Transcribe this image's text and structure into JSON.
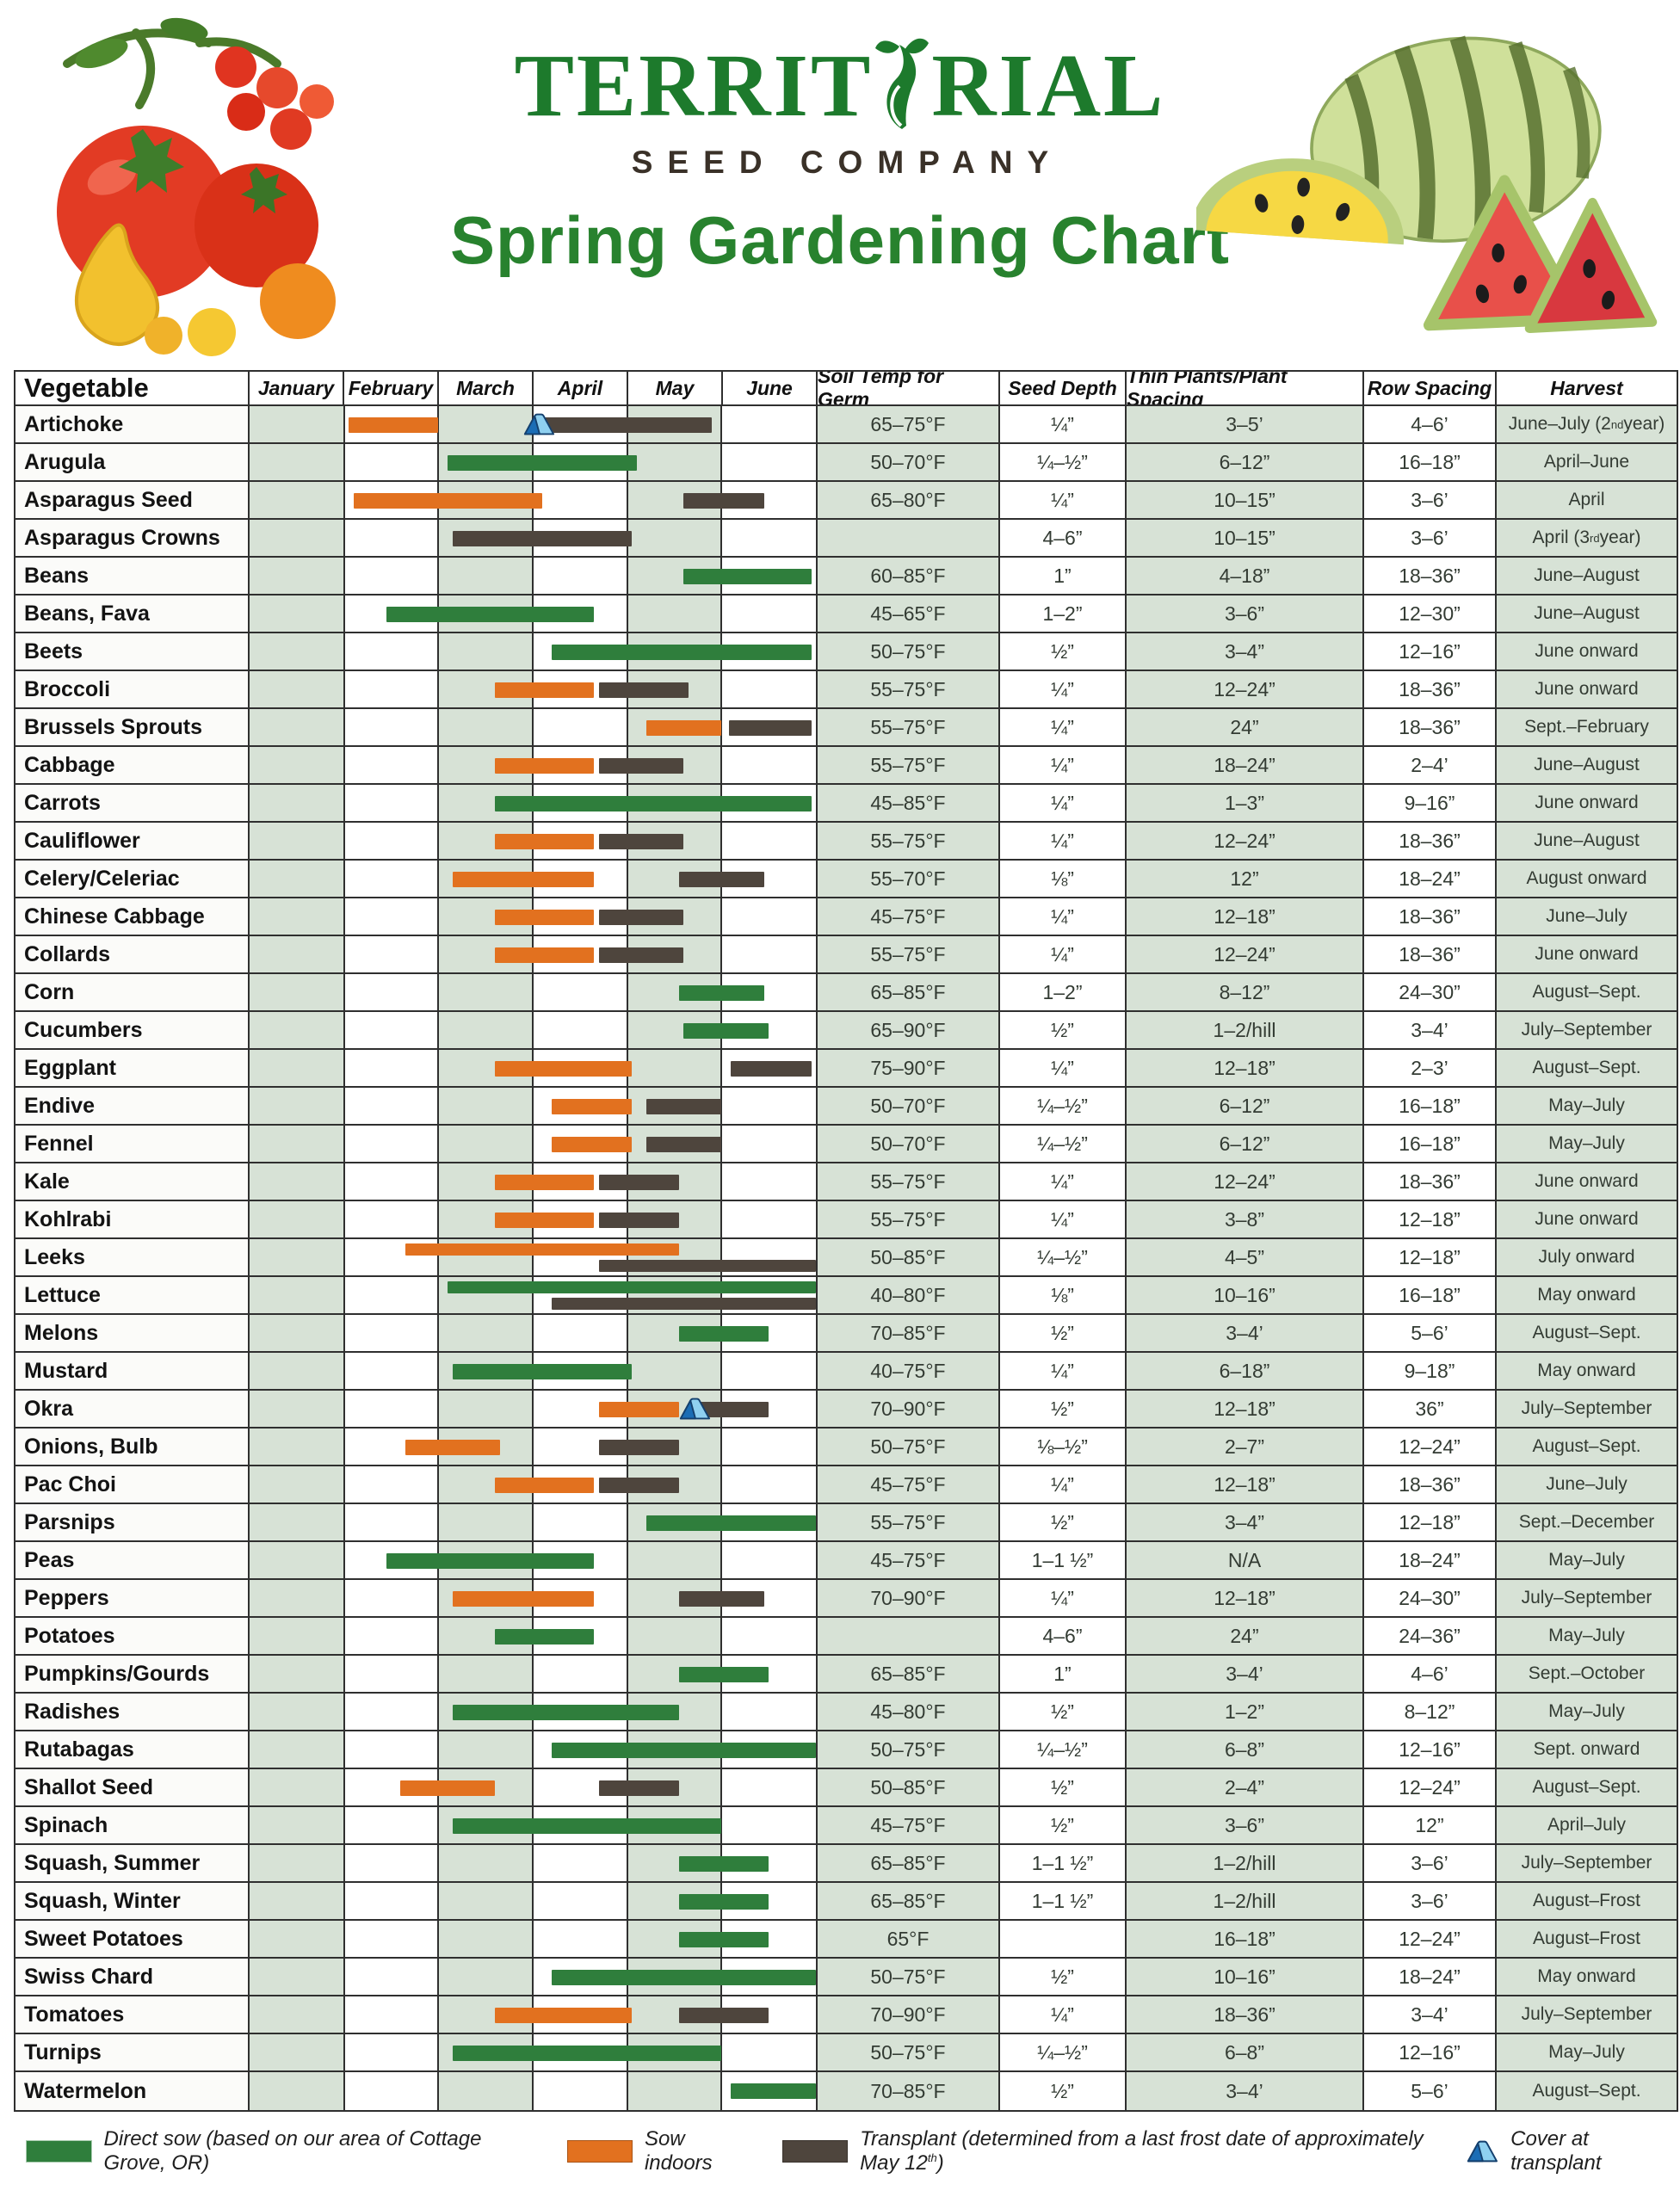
{
  "header": {
    "brand_left": "TERRIT",
    "brand_right": "RIAL",
    "brand_sub": "SEED COMPANY",
    "title": "Spring Gardening Chart"
  },
  "table": {
    "veg_header": "Vegetable",
    "col_headers": [
      "Soil Temp for Germ",
      "Seed Depth",
      "Thin Plants/Plant Spacing",
      "Row Spacing",
      "Harvest"
    ]
  },
  "chart_data": {
    "type": "gantt",
    "title": "Spring Gardening Chart",
    "months": [
      "January",
      "February",
      "March",
      "April",
      "May",
      "June"
    ],
    "axis_note": "bar start/end are in month units, 0 = Jan 1, 6 = end of June",
    "bar_types": {
      "ds": "Direct sow",
      "si": "Sow indoors",
      "tp": "Transplant"
    },
    "rows": [
      {
        "name": "Artichoke",
        "soil": "65–75°F",
        "depth": "¼”",
        "thin": "3–5’",
        "row": "4–6’",
        "harvest": "June–July (2nd year)",
        "bars": [
          {
            "t": "si",
            "s": 1.05,
            "e": 2.0
          },
          {
            "t": "tp",
            "s": 3.0,
            "e": 4.9,
            "tent": true
          }
        ]
      },
      {
        "name": "Arugula",
        "soil": "50–70°F",
        "depth": "¼–½”",
        "thin": "6–12”",
        "row": "16–18”",
        "harvest": "April–June",
        "bars": [
          {
            "t": "ds",
            "s": 2.1,
            "e": 4.1
          }
        ]
      },
      {
        "name": "Asparagus Seed",
        "soil": "65–80°F",
        "depth": "¼”",
        "thin": "10–15”",
        "row": "3–6’",
        "harvest": "April",
        "bars": [
          {
            "t": "si",
            "s": 1.1,
            "e": 3.1
          },
          {
            "t": "tp",
            "s": 4.6,
            "e": 5.45
          }
        ]
      },
      {
        "name": "Asparagus Crowns",
        "soil": "",
        "depth": "4–6”",
        "thin": "10–15”",
        "row": "3–6’",
        "harvest": "April (3rd year)",
        "bars": [
          {
            "t": "tp",
            "s": 2.15,
            "e": 4.05
          }
        ]
      },
      {
        "name": "Beans",
        "soil": "60–85°F",
        "depth": "1”",
        "thin": "4–18”",
        "row": "18–36”",
        "harvest": "June–August",
        "bars": [
          {
            "t": "ds",
            "s": 4.6,
            "e": 5.95
          }
        ]
      },
      {
        "name": "Beans, Fava",
        "soil": "45–65°F",
        "depth": "1–2”",
        "thin": "3–6”",
        "row": "12–30”",
        "harvest": "June–August",
        "bars": [
          {
            "t": "ds",
            "s": 1.45,
            "e": 3.65
          }
        ]
      },
      {
        "name": "Beets",
        "soil": "50–75°F",
        "depth": "½”",
        "thin": "3–4”",
        "row": "12–16”",
        "harvest": "June onward",
        "bars": [
          {
            "t": "ds",
            "s": 3.2,
            "e": 5.95
          }
        ]
      },
      {
        "name": "Broccoli",
        "soil": "55–75°F",
        "depth": "¼”",
        "thin": "12–24”",
        "row": "18–36”",
        "harvest": "June onward",
        "bars": [
          {
            "t": "si",
            "s": 2.6,
            "e": 3.65
          },
          {
            "t": "tp",
            "s": 3.7,
            "e": 4.65
          }
        ]
      },
      {
        "name": "Brussels Sprouts",
        "soil": "55–75°F",
        "depth": "¼”",
        "thin": "24”",
        "row": "18–36”",
        "harvest": "Sept.–February",
        "bars": [
          {
            "t": "si",
            "s": 4.2,
            "e": 5.0
          },
          {
            "t": "tp",
            "s": 5.08,
            "e": 5.95
          }
        ]
      },
      {
        "name": "Cabbage",
        "soil": "55–75°F",
        "depth": "¼”",
        "thin": "18–24”",
        "row": "2–4’",
        "harvest": "June–August",
        "bars": [
          {
            "t": "si",
            "s": 2.6,
            "e": 3.65
          },
          {
            "t": "tp",
            "s": 3.7,
            "e": 4.6
          }
        ]
      },
      {
        "name": "Carrots",
        "soil": "45–85°F",
        "depth": "¼”",
        "thin": "1–3”",
        "row": "9–16”",
        "harvest": "June onward",
        "bars": [
          {
            "t": "ds",
            "s": 2.6,
            "e": 5.95
          }
        ]
      },
      {
        "name": "Cauliflower",
        "soil": "55–75°F",
        "depth": "¼”",
        "thin": "12–24”",
        "row": "18–36”",
        "harvest": "June–August",
        "bars": [
          {
            "t": "si",
            "s": 2.6,
            "e": 3.65
          },
          {
            "t": "tp",
            "s": 3.7,
            "e": 4.6
          }
        ]
      },
      {
        "name": "Celery/Celeriac",
        "soil": "55–70°F",
        "depth": "⅛”",
        "thin": "12”",
        "row": "18–24”",
        "harvest": "August onward",
        "bars": [
          {
            "t": "si",
            "s": 2.15,
            "e": 3.65
          },
          {
            "t": "tp",
            "s": 4.55,
            "e": 5.45
          }
        ]
      },
      {
        "name": "Chinese Cabbage",
        "soil": "45–75°F",
        "depth": "¼”",
        "thin": "12–18”",
        "row": "18–36”",
        "harvest": "June–July",
        "bars": [
          {
            "t": "si",
            "s": 2.6,
            "e": 3.65
          },
          {
            "t": "tp",
            "s": 3.7,
            "e": 4.6
          }
        ]
      },
      {
        "name": "Collards",
        "soil": "55–75°F",
        "depth": "¼”",
        "thin": "12–24”",
        "row": "18–36”",
        "harvest": "June onward",
        "bars": [
          {
            "t": "si",
            "s": 2.6,
            "e": 3.65
          },
          {
            "t": "tp",
            "s": 3.7,
            "e": 4.6
          }
        ]
      },
      {
        "name": "Corn",
        "soil": "65–85°F",
        "depth": "1–2”",
        "thin": "8–12”",
        "row": "24–30”",
        "harvest": "August–Sept.",
        "bars": [
          {
            "t": "ds",
            "s": 4.55,
            "e": 5.45
          }
        ]
      },
      {
        "name": "Cucumbers",
        "soil": "65–90°F",
        "depth": "½”",
        "thin": "1–2/hill",
        "row": "3–4’",
        "harvest": "July–September",
        "bars": [
          {
            "t": "ds",
            "s": 4.6,
            "e": 5.5
          }
        ]
      },
      {
        "name": "Eggplant",
        "soil": "75–90°F",
        "depth": "¼”",
        "thin": "12–18”",
        "row": "2–3’",
        "harvest": "August–Sept.",
        "bars": [
          {
            "t": "si",
            "s": 2.6,
            "e": 4.05
          },
          {
            "t": "tp",
            "s": 5.1,
            "e": 5.95
          }
        ]
      },
      {
        "name": "Endive",
        "soil": "50–70°F",
        "depth": "¼–½”",
        "thin": "6–12”",
        "row": "16–18”",
        "harvest": "May–July",
        "bars": [
          {
            "t": "si",
            "s": 3.2,
            "e": 4.05
          },
          {
            "t": "tp",
            "s": 4.2,
            "e": 5.0
          }
        ]
      },
      {
        "name": "Fennel",
        "soil": "50–70°F",
        "depth": "¼–½”",
        "thin": "6–12”",
        "row": "16–18”",
        "harvest": "May–July",
        "bars": [
          {
            "t": "si",
            "s": 3.2,
            "e": 4.05
          },
          {
            "t": "tp",
            "s": 4.2,
            "e": 5.0
          }
        ]
      },
      {
        "name": "Kale",
        "soil": "55–75°F",
        "depth": "¼”",
        "thin": "12–24”",
        "row": "18–36”",
        "harvest": "June onward",
        "bars": [
          {
            "t": "si",
            "s": 2.6,
            "e": 3.65
          },
          {
            "t": "tp",
            "s": 3.7,
            "e": 4.55
          }
        ]
      },
      {
        "name": "Kohlrabi",
        "soil": "55–75°F",
        "depth": "¼”",
        "thin": "3–8”",
        "row": "12–18”",
        "harvest": "June onward",
        "bars": [
          {
            "t": "si",
            "s": 2.6,
            "e": 3.65
          },
          {
            "t": "tp",
            "s": 3.7,
            "e": 4.55
          }
        ]
      },
      {
        "name": "Leeks",
        "soil": "50–85°F",
        "depth": "¼–½”",
        "thin": "4–5”",
        "row": "12–18”",
        "harvest": "July onward",
        "bars": [
          {
            "t": "si",
            "s": 1.65,
            "e": 4.55,
            "pos": "top"
          },
          {
            "t": "tp",
            "s": 3.7,
            "e": 6.0,
            "pos": "bot"
          }
        ]
      },
      {
        "name": "Lettuce",
        "soil": "40–80°F",
        "depth": "⅛”",
        "thin": "10–16”",
        "row": "16–18”",
        "harvest": "May onward",
        "bars": [
          {
            "t": "ds",
            "s": 2.1,
            "e": 6.0,
            "pos": "top"
          },
          {
            "t": "tp",
            "s": 3.2,
            "e": 6.0,
            "pos": "bot"
          }
        ]
      },
      {
        "name": "Melons",
        "soil": "70–85°F",
        "depth": "½”",
        "thin": "3–4’",
        "row": "5–6’",
        "harvest": "August–Sept.",
        "bars": [
          {
            "t": "ds",
            "s": 4.55,
            "e": 5.5
          }
        ]
      },
      {
        "name": "Mustard",
        "soil": "40–75°F",
        "depth": "¼”",
        "thin": "6–18”",
        "row": "9–18”",
        "harvest": "May onward",
        "bars": [
          {
            "t": "ds",
            "s": 2.15,
            "e": 4.05
          }
        ]
      },
      {
        "name": "Okra",
        "soil": "70–90°F",
        "depth": "½”",
        "thin": "12–18”",
        "row": "36”",
        "harvest": "July–September",
        "bars": [
          {
            "t": "si",
            "s": 3.7,
            "e": 4.55
          },
          {
            "t": "tp",
            "s": 4.65,
            "e": 5.5,
            "tent": true
          }
        ]
      },
      {
        "name": "Onions, Bulb",
        "soil": "50–75°F",
        "depth": "⅛–½”",
        "thin": "2–7”",
        "row": "12–24”",
        "harvest": "August–Sept.",
        "bars": [
          {
            "t": "si",
            "s": 1.65,
            "e": 2.65
          },
          {
            "t": "tp",
            "s": 3.7,
            "e": 4.55
          }
        ]
      },
      {
        "name": "Pac Choi",
        "soil": "45–75°F",
        "depth": "¼”",
        "thin": "12–18”",
        "row": "18–36”",
        "harvest": "June–July",
        "bars": [
          {
            "t": "si",
            "s": 2.6,
            "e": 3.65
          },
          {
            "t": "tp",
            "s": 3.7,
            "e": 4.55
          }
        ]
      },
      {
        "name": "Parsnips",
        "soil": "55–75°F",
        "depth": "½”",
        "thin": "3–4”",
        "row": "12–18”",
        "harvest": "Sept.–December",
        "bars": [
          {
            "t": "ds",
            "s": 4.2,
            "e": 6.0
          }
        ]
      },
      {
        "name": "Peas",
        "soil": "45–75°F",
        "depth": "1–1 ½”",
        "thin": "N/A",
        "row": "18–24”",
        "harvest": "May–July",
        "bars": [
          {
            "t": "ds",
            "s": 1.45,
            "e": 3.65
          }
        ]
      },
      {
        "name": "Peppers",
        "soil": "70–90°F",
        "depth": "¼”",
        "thin": "12–18”",
        "row": "24–30”",
        "harvest": "July–September",
        "bars": [
          {
            "t": "si",
            "s": 2.15,
            "e": 3.65
          },
          {
            "t": "tp",
            "s": 4.55,
            "e": 5.45
          }
        ]
      },
      {
        "name": "Potatoes",
        "soil": "",
        "depth": "4–6”",
        "thin": "24”",
        "row": "24–36”",
        "harvest": "May–July",
        "bars": [
          {
            "t": "ds",
            "s": 2.6,
            "e": 3.65
          }
        ]
      },
      {
        "name": "Pumpkins/Gourds",
        "soil": "65–85°F",
        "depth": "1”",
        "thin": "3–4’",
        "row": "4–6’",
        "harvest": "Sept.–October",
        "bars": [
          {
            "t": "ds",
            "s": 4.55,
            "e": 5.5
          }
        ]
      },
      {
        "name": "Radishes",
        "soil": "45–80°F",
        "depth": "½”",
        "thin": "1–2”",
        "row": "8–12”",
        "harvest": "May–July",
        "bars": [
          {
            "t": "ds",
            "s": 2.15,
            "e": 4.55
          }
        ]
      },
      {
        "name": "Rutabagas",
        "soil": "50–75°F",
        "depth": "¼–½”",
        "thin": "6–8”",
        "row": "12–16”",
        "harvest": "Sept. onward",
        "bars": [
          {
            "t": "ds",
            "s": 3.2,
            "e": 6.0
          }
        ]
      },
      {
        "name": "Shallot Seed",
        "soil": "50–85°F",
        "depth": "½”",
        "thin": "2–4”",
        "row": "12–24”",
        "harvest": "August–Sept.",
        "bars": [
          {
            "t": "si",
            "s": 1.6,
            "e": 2.6
          },
          {
            "t": "tp",
            "s": 3.7,
            "e": 4.55
          }
        ]
      },
      {
        "name": "Spinach",
        "soil": "45–75°F",
        "depth": "½”",
        "thin": "3–6”",
        "row": "12”",
        "harvest": "April–July",
        "bars": [
          {
            "t": "ds",
            "s": 2.15,
            "e": 5.0
          }
        ]
      },
      {
        "name": "Squash, Summer",
        "soil": "65–85°F",
        "depth": "1–1 ½”",
        "thin": "1–2/hill",
        "row": "3–6’",
        "harvest": "July–September",
        "bars": [
          {
            "t": "ds",
            "s": 4.55,
            "e": 5.5
          }
        ]
      },
      {
        "name": "Squash, Winter",
        "soil": "65–85°F",
        "depth": "1–1 ½”",
        "thin": "1–2/hill",
        "row": "3–6’",
        "harvest": "August–Frost",
        "bars": [
          {
            "t": "ds",
            "s": 4.55,
            "e": 5.5
          }
        ]
      },
      {
        "name": "Sweet Potatoes",
        "soil": "65°F",
        "depth": "",
        "thin": "16–18”",
        "row": "12–24”",
        "harvest": "August–Frost",
        "bars": [
          {
            "t": "ds",
            "s": 4.55,
            "e": 5.5
          }
        ]
      },
      {
        "name": "Swiss Chard",
        "soil": "50–75°F",
        "depth": "½”",
        "thin": "10–16”",
        "row": "18–24”",
        "harvest": "May onward",
        "bars": [
          {
            "t": "ds",
            "s": 3.2,
            "e": 6.0
          }
        ]
      },
      {
        "name": "Tomatoes",
        "soil": "70–90°F",
        "depth": "¼”",
        "thin": "18–36”",
        "row": "3–4’",
        "harvest": "July–September",
        "bars": [
          {
            "t": "si",
            "s": 2.6,
            "e": 4.05
          },
          {
            "t": "tp",
            "s": 4.55,
            "e": 5.5
          }
        ]
      },
      {
        "name": "Turnips",
        "soil": "50–75°F",
        "depth": "¼–½”",
        "thin": "6–8”",
        "row": "12–16”",
        "harvest": "May–July",
        "bars": [
          {
            "t": "ds",
            "s": 2.15,
            "e": 5.0
          }
        ]
      },
      {
        "name": "Watermelon",
        "soil": "70–85°F",
        "depth": "½”",
        "thin": "3–4’",
        "row": "5–6’",
        "harvest": "August–Sept.",
        "bars": [
          {
            "t": "ds",
            "s": 5.1,
            "e": 6.0
          }
        ]
      }
    ]
  },
  "legend": [
    {
      "type": "ds",
      "label": "Direct sow (based on our area of Cottage Grove, OR)"
    },
    {
      "type": "si",
      "label": "Sow indoors"
    },
    {
      "type": "tp",
      "label": "Transplant (determined from a last frost date of approximately May 12th)"
    },
    {
      "type": "tent",
      "label": "Cover at transplant"
    }
  ],
  "colors": {
    "direct_sow": "#2f7e3c",
    "sow_indoors": "#e2711f",
    "transplant": "#4e453d",
    "cell_tint": "#d7e2d6",
    "grid_line": "#2f2f2f",
    "brand_green": "#1d7a2c",
    "title_green": "#28822e",
    "tent_dark_blue": "#1b6db5",
    "tent_light_blue": "#8fd0f0"
  }
}
